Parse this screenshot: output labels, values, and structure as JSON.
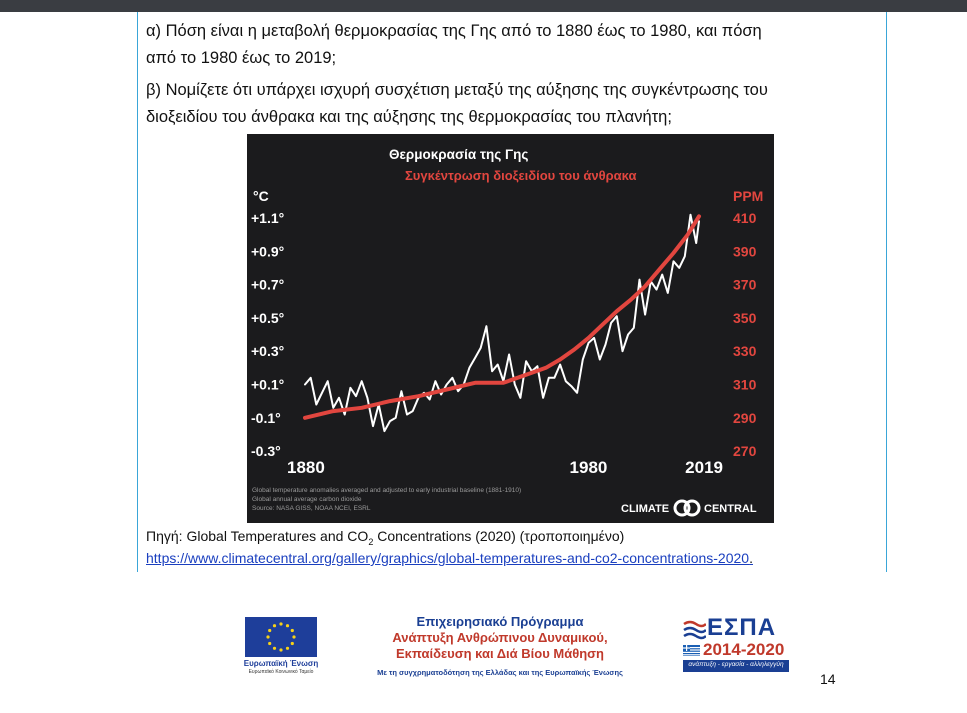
{
  "document": {
    "question_a_line1": "α) Πόση είναι η μεταβολή θερμοκρασίας της Γης από το 1880 έως το 1980, και πόση",
    "question_a_line2": "από το 1980 έως το 2019;",
    "question_b_line1": "β) Νομίζετε ότι υπάρχει ισχυρή συσχέτιση μεταξύ της αύξησης της συγκέντρωσης του",
    "question_b_line2": "διοξειδίου του άνθρακα και της αύξησης της θερμοκρασίας του πλανήτη;",
    "caption_prefix": "Πηγή: Global Temperatures and CO",
    "caption_sub": "2",
    "caption_suffix": " Concentrations (2020) (τροποποιημένο)",
    "source_link": "https://www.climatecentral.org/gallery/graphics/global-temperatures-and-co2-concentrations-2020",
    "source_link_period": ".",
    "page_number": "14"
  },
  "footer": {
    "eu_label": "Ευρωπαϊκή Ένωση",
    "eu_sub": "Ευρωπαϊκό Κοινωνικό Ταμείο",
    "program_line1": "Επιχειρησιακό Πρόγραμμα",
    "program_line2": "Ανάπτυξη Ανθρώπινου Δυναμικού,",
    "program_line3": "Εκπαίδευση και Διά Βίου Μάθηση",
    "program_line4": "Με τη συγχρηματοδότηση της Ελλάδας και της Ευρωπαϊκής Ένωσης",
    "espa_title": "ΕΣΠΑ",
    "espa_years": "2014-2020",
    "espa_tagline": "ανάπτυξη - εργασία - αλληλεγγύη"
  },
  "colors": {
    "temp_line": "#ffffff",
    "co2_line": "#e2463f",
    "chart_bg": "#1b1b1d",
    "accent_blue": "#1a3f93",
    "accent_red": "#c0392b",
    "frame_border": "#3aa6d8"
  },
  "chart_data": {
    "type": "line",
    "title": "Θερμοκρασία της Γης",
    "subtitle": "Συγκέντρωση διοξειδίου του άνθρακα",
    "left_unit": "°C",
    "right_unit": "PPM",
    "left_ticks": [
      "+1.1°",
      "+0.9°",
      "+0.7°",
      "+0.5°",
      "+0.3°",
      "+0.1°",
      "-0.1°",
      "-0.3°"
    ],
    "left_tick_values": [
      1.1,
      0.9,
      0.7,
      0.5,
      0.3,
      0.1,
      -0.1,
      -0.3
    ],
    "right_ticks": [
      "410",
      "390",
      "370",
      "350",
      "330",
      "310",
      "290",
      "270"
    ],
    "right_tick_values": [
      410,
      390,
      370,
      350,
      330,
      310,
      290,
      270
    ],
    "x_labels": [
      "1880",
      "1980",
      "2019"
    ],
    "x_label_values": [
      1880,
      1980,
      2019
    ],
    "xlim": [
      1880,
      2019
    ],
    "ylim_left": [
      -0.3,
      1.15
    ],
    "ylim_right": [
      270,
      415
    ],
    "grid": false,
    "series": [
      {
        "name": "Θερμοκρασία της Γης",
        "axis": "left",
        "x": [
          1880,
          1882,
          1884,
          1886,
          1888,
          1890,
          1892,
          1894,
          1896,
          1898,
          1900,
          1902,
          1904,
          1906,
          1908,
          1910,
          1912,
          1914,
          1916,
          1918,
          1920,
          1922,
          1924,
          1926,
          1928,
          1930,
          1932,
          1934,
          1936,
          1938,
          1940,
          1942,
          1944,
          1946,
          1948,
          1950,
          1952,
          1954,
          1956,
          1958,
          1960,
          1962,
          1964,
          1966,
          1968,
          1970,
          1972,
          1974,
          1976,
          1978,
          1980,
          1982,
          1984,
          1986,
          1988,
          1990,
          1992,
          1994,
          1996,
          1998,
          2000,
          2002,
          2004,
          2006,
          2008,
          2010,
          2012,
          2014,
          2016,
          2018,
          2019
        ],
        "values": [
          0.1,
          0.14,
          -0.02,
          0.05,
          0.12,
          -0.04,
          0.02,
          -0.08,
          0.08,
          0.03,
          0.12,
          0.02,
          -0.15,
          -0.02,
          -0.18,
          -0.12,
          -0.1,
          0.06,
          -0.08,
          -0.06,
          0.02,
          0.05,
          0.01,
          0.12,
          0.04,
          0.1,
          0.14,
          0.06,
          0.1,
          0.2,
          0.26,
          0.32,
          0.45,
          0.18,
          0.22,
          0.12,
          0.28,
          0.1,
          0.02,
          0.24,
          0.18,
          0.21,
          0.02,
          0.14,
          0.14,
          0.22,
          0.12,
          0.09,
          0.05,
          0.25,
          0.35,
          0.38,
          0.25,
          0.34,
          0.47,
          0.51,
          0.3,
          0.4,
          0.44,
          0.73,
          0.52,
          0.72,
          0.67,
          0.76,
          0.65,
          0.84,
          0.8,
          0.87,
          1.12,
          0.95,
          1.08
        ]
      },
      {
        "name": "Συγκέντρωση διοξειδίου του άνθρακα",
        "axis": "right",
        "x": [
          1880,
          1890,
          1900,
          1910,
          1920,
          1930,
          1940,
          1950,
          1960,
          1965,
          1970,
          1975,
          1980,
          1985,
          1990,
          1995,
          2000,
          2005,
          2010,
          2015,
          2019
        ],
        "values": [
          290,
          294,
          296,
          300,
          303,
          307,
          311,
          311,
          317,
          320,
          325,
          331,
          338,
          346,
          354,
          361,
          369,
          379,
          389,
          400,
          411
        ]
      }
    ],
    "footnote_line1": "Global temperature anomalies averaged and adjusted to early industrial baseline (1881-1910)",
    "footnote_line2": "Global annual average carbon dioxide",
    "footnote_line3": "Source: NASA GISS, NOAA NCEI, ESRL",
    "brand_left": "CLIMATE",
    "brand_right": "CENTRAL"
  }
}
